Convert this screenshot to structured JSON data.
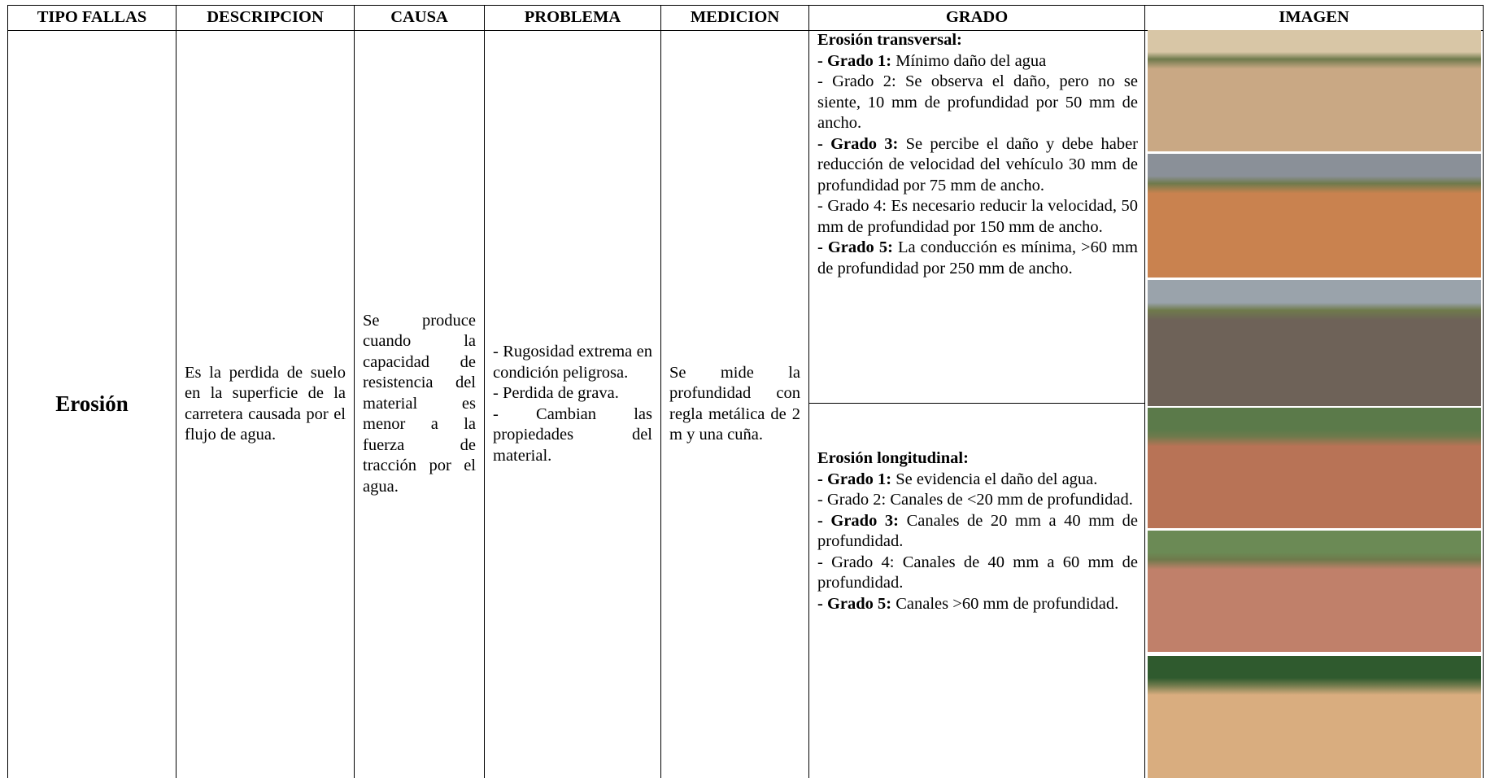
{
  "header": {
    "columns": [
      "TIPO FALLAS",
      "DESCRIPCION",
      "CAUSA",
      "PROBLEMA",
      "MEDICION",
      "GRADO",
      "IMAGEN"
    ]
  },
  "row": {
    "tipo": "Erosión",
    "descripcion": "Es la perdida de suelo en la superficie de la carretera causada por el flujo de agua.",
    "causa": "Se produce cuando la capacidad de resistencia del material es menor a la fuerza de tracción por el agua.",
    "problema": [
      "- Rugosidad extrema en condición peligrosa.",
      "- Perdida de grava.",
      "- Cambian las propiedades del material."
    ],
    "medicion": "Se mide la profundidad con regla metálica de 2 m y una cuña.",
    "grado": [
      {
        "title": "Erosión transversal:",
        "items": [
          {
            "bold": "- Grado 1:",
            "text": "Mínimo daño del agua"
          },
          {
            "text": "- Grado 2: Se observa el daño, pero no se siente, 10 mm de profundidad por 50 mm de ancho."
          },
          {
            "bold": "- Grado 3:",
            "text": "Se percibe el daño y debe haber reducción de velocidad del vehículo 30 mm de profundidad por 75 mm de ancho."
          },
          {
            "text": "- Grado 4: Es necesario reducir la velocidad, 50 mm de profundidad por 150 mm de ancho."
          },
          {
            "bold": "- Grado 5:",
            "text": "La conducción es mínima, >60 mm de profundidad por 250 mm de ancho."
          }
        ]
      },
      {
        "title": "Erosión longitudinal:",
        "items": [
          {
            "bold": "- Grado 1:",
            "text": "Se evidencia el daño del agua."
          },
          {
            "text": "- Grado 2: Canales de <20 mm de profundidad."
          },
          {
            "bold": "- Grado 3:",
            "text": "Canales de 20 mm a 40 mm de profundidad."
          },
          {
            "text": "- Grado 4: Canales de 40 mm a 60 mm de profundidad."
          },
          {
            "bold": "- Grado 5:",
            "text": "Canales >60 mm de profundidad."
          }
        ]
      }
    ]
  }
}
